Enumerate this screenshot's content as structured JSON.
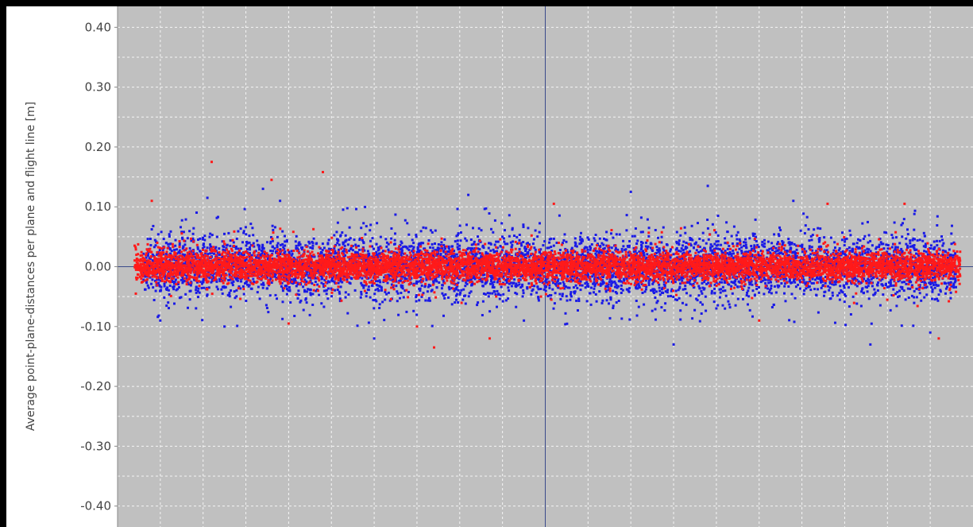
{
  "chart_data": {
    "type": "scatter",
    "ylabel": "Average point-plane-distances per plane and flight line [m]",
    "xlabel": "",
    "ylim": [
      -0.435,
      0.435
    ],
    "xlim": [
      -1.0,
      1.0
    ],
    "y_ticks": [
      {
        "value": 0.4,
        "label": "0.40"
      },
      {
        "value": 0.3,
        "label": "0.30"
      },
      {
        "value": 0.2,
        "label": "0.20"
      },
      {
        "value": 0.1,
        "label": "0.10"
      },
      {
        "value": 0.0,
        "label": "0.00"
      },
      {
        "value": -0.1,
        "label": "-0.10"
      },
      {
        "value": -0.2,
        "label": "-0.20"
      },
      {
        "value": -0.3,
        "label": "-0.30"
      },
      {
        "value": -0.4,
        "label": "-0.40"
      }
    ],
    "x_gridlines": [
      -0.8,
      -0.6,
      -0.4,
      -0.2,
      0.2,
      0.4,
      0.6,
      0.8
    ],
    "x_minor_gridlines": [
      -0.9,
      -0.7,
      -0.5,
      -0.3,
      -0.1,
      0.1,
      0.3,
      0.5,
      0.7,
      0.9
    ],
    "grid": true,
    "background_color": "#c0c0c0",
    "grid_color": "#ffffff",
    "crosshair_color": "#3a4a8a",
    "series": [
      {
        "color": "#1a1ae6",
        "x_range": [
          -0.94,
          0.96
        ],
        "spread_sd": 0.025,
        "count": 6000,
        "outliers": [
          {
            "x": -0.79,
            "y": 0.115
          },
          {
            "x": -0.66,
            "y": 0.13
          },
          {
            "x": -0.62,
            "y": 0.11
          },
          {
            "x": -0.4,
            "y": -0.12
          },
          {
            "x": -0.18,
            "y": 0.12
          },
          {
            "x": 0.2,
            "y": 0.125
          },
          {
            "x": 0.38,
            "y": 0.135
          },
          {
            "x": 0.3,
            "y": -0.13
          },
          {
            "x": 0.58,
            "y": 0.11
          },
          {
            "x": 0.76,
            "y": -0.13
          },
          {
            "x": -0.9,
            "y": -0.09
          },
          {
            "x": 0.9,
            "y": -0.11
          },
          {
            "x": -0.75,
            "y": -0.1
          },
          {
            "x": 0.42,
            "y": -0.07
          },
          {
            "x": -0.05,
            "y": -0.09
          }
        ]
      },
      {
        "color": "#ff1a1a",
        "x_range": [
          -0.96,
          0.97
        ],
        "spread_sd": 0.012,
        "count": 7000,
        "outliers": [
          {
            "x": -0.78,
            "y": 0.175
          },
          {
            "x": -0.64,
            "y": 0.145
          },
          {
            "x": -0.52,
            "y": 0.158
          },
          {
            "x": -0.26,
            "y": -0.135
          },
          {
            "x": -0.13,
            "y": -0.12
          },
          {
            "x": 0.02,
            "y": 0.105
          },
          {
            "x": -0.3,
            "y": -0.1
          },
          {
            "x": 0.84,
            "y": 0.105
          },
          {
            "x": 0.92,
            "y": -0.12
          },
          {
            "x": -0.92,
            "y": 0.11
          },
          {
            "x": 0.66,
            "y": 0.105
          },
          {
            "x": -0.6,
            "y": -0.095
          },
          {
            "x": 0.5,
            "y": -0.09
          },
          {
            "x": -0.96,
            "y": 0.035
          },
          {
            "x": 0.97,
            "y": 0.025
          }
        ]
      }
    ]
  }
}
